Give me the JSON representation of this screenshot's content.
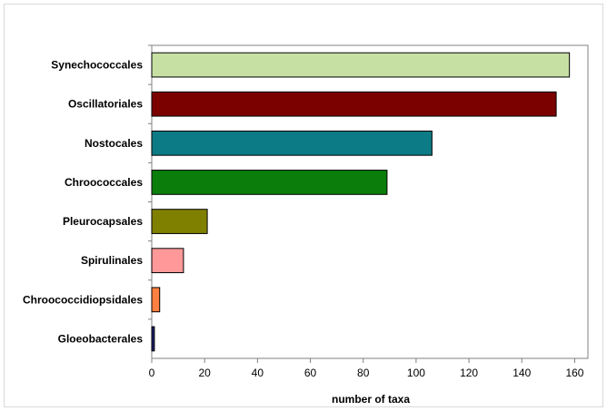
{
  "chart_data": {
    "type": "bar",
    "orientation": "horizontal",
    "categories": [
      "Synechococcales",
      "Oscillatoriales",
      "Nostocales",
      "Chroococcales",
      "Pleurocapsales",
      "Spirulinales",
      "Chroococcidiopsidales",
      "Gloeobacterales"
    ],
    "values": [
      158,
      153,
      106,
      89,
      21,
      12,
      3,
      1
    ],
    "colors": [
      "#c6e0a4",
      "#7b0000",
      "#0c7b86",
      "#0a7d0a",
      "#808000",
      "#ff9999",
      "#ff8040",
      "#1f1f6e"
    ],
    "title": "",
    "xlabel": "number of taxa",
    "ylabel": "",
    "xlim": [
      0,
      165
    ],
    "xticks": [
      0,
      20,
      40,
      60,
      80,
      100,
      120,
      140,
      160
    ],
    "grid": false,
    "legend": "none"
  }
}
